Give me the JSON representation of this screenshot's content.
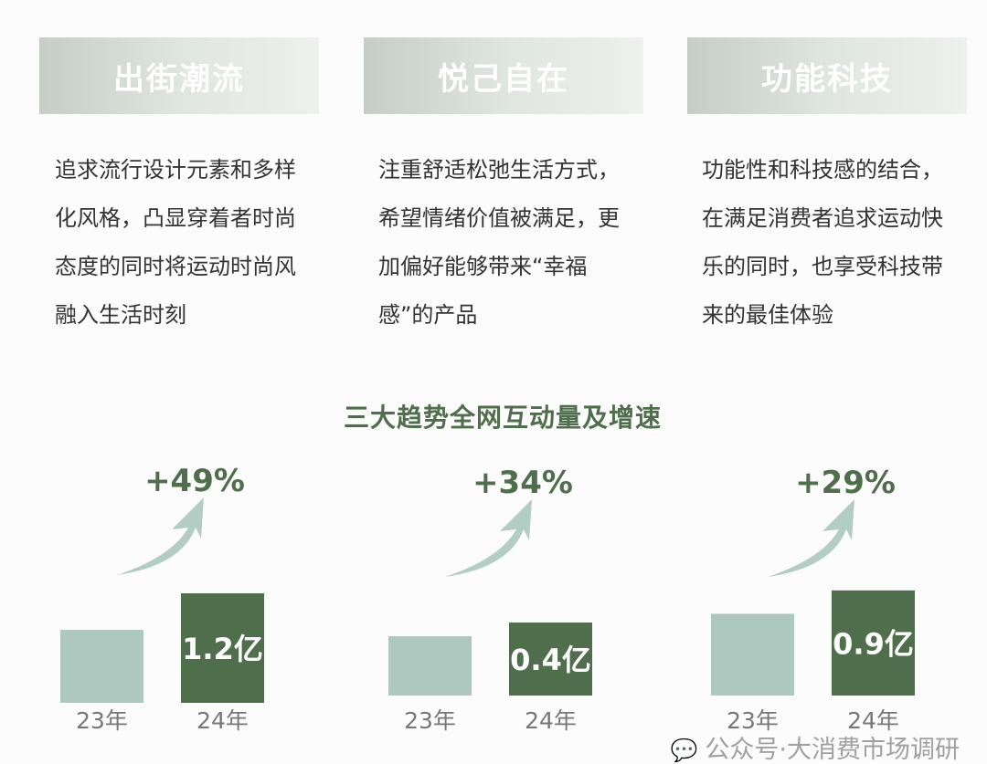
{
  "cards": [
    {
      "title": "出街潮流",
      "body": "追求流行设计元素和多样化风格，凸显穿着者时尚态度的同时将运动时尚风融入生活时刻"
    },
    {
      "title": "悦己自在",
      "body": "注重舒适松弛生活方式，希望情绪价值被满足，更加偏好能够带来“幸福感”的产品"
    },
    {
      "title": "功能科技",
      "body": "功能性和科技感的结合，在满足消费者追求运动快乐的同时，也享受科技带来的最佳体验"
    }
  ],
  "chart_data": {
    "type": "bar",
    "title": "三大趋势全网互动量及增速",
    "groups": [
      {
        "categories": [
          "23年",
          "24年"
        ],
        "values": [
          0.8,
          1.2
        ],
        "labels": [
          "",
          "1.2亿"
        ],
        "growth": "+49%"
      },
      {
        "categories": [
          "23年",
          "24年"
        ],
        "values": [
          0.3,
          0.4
        ],
        "labels": [
          "",
          "0.4亿"
        ],
        "growth": "+34%"
      },
      {
        "categories": [
          "23年",
          "24年"
        ],
        "values": [
          0.7,
          0.9
        ],
        "labels": [
          "",
          "0.9亿"
        ],
        "growth": "+29%"
      }
    ],
    "colors": {
      "prev": "#adc9bf",
      "curr": "#4f6e4b",
      "arrow": "#b2cdc3",
      "growth_text": "#4f6e4b"
    }
  },
  "watermark": "公众号·大消费市场调研"
}
